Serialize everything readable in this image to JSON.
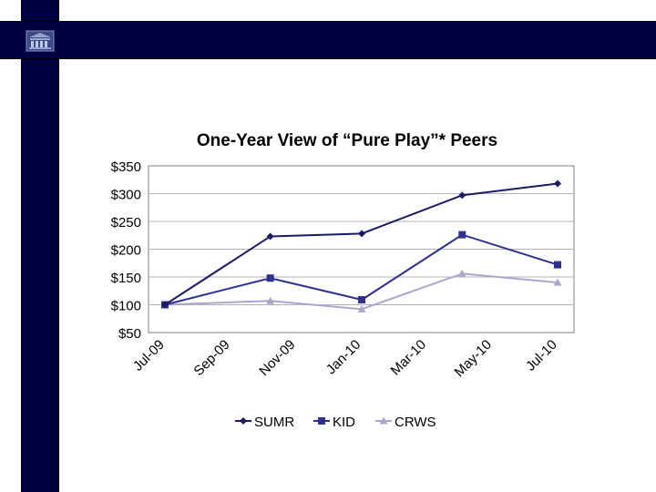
{
  "colors": {
    "frame": "#000040"
  },
  "logo": {
    "icon": "building-logo-icon"
  },
  "chart_data": {
    "type": "line",
    "title": "One-Year View of “Pure Play”* Peers",
    "x": [
      "Jul-09",
      "Sep-09",
      "Nov-09",
      "Jan-10",
      "Mar-10",
      "May-10",
      "Jul-10"
    ],
    "yticks": [
      "$350",
      "$300",
      "$250",
      "$200",
      "$150",
      "$100",
      "$50"
    ],
    "ylim": [
      50,
      350
    ],
    "grid": true,
    "legend": "bottom",
    "series": [
      {
        "name": "SUMR",
        "marker": "diamond",
        "color": "#1c1c64",
        "points": [
          [
            "2009-07-01",
            100
          ],
          [
            "2009-10-15",
            223
          ],
          [
            "2010-01-15",
            228
          ],
          [
            "2010-04-26",
            297
          ],
          [
            "2010-07-31",
            318
          ]
        ]
      },
      {
        "name": "KID",
        "marker": "square",
        "color": "#303090",
        "points": [
          [
            "2009-07-01",
            100
          ],
          [
            "2009-10-15",
            148
          ],
          [
            "2010-01-15",
            109
          ],
          [
            "2010-04-26",
            226
          ],
          [
            "2010-07-31",
            172
          ]
        ]
      },
      {
        "name": "CRWS",
        "marker": "triangle",
        "color": "#a8a8cc",
        "points": [
          [
            "2009-07-01",
            100
          ],
          [
            "2009-10-15",
            107
          ],
          [
            "2010-01-15",
            92
          ],
          [
            "2010-04-26",
            156
          ],
          [
            "2010-07-31",
            140
          ]
        ]
      }
    ]
  }
}
